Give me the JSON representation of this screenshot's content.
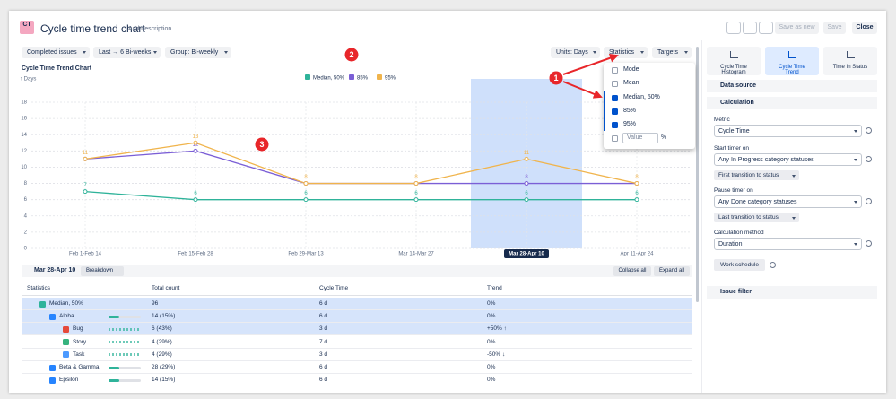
{
  "header": {
    "logo": "CT",
    "title": "Cycle time trend chart",
    "description": "Add description",
    "buttons": [
      "Save as new",
      "Save",
      "Close"
    ]
  },
  "toolbar": {
    "left": [
      "Completed issues",
      "Last → 6 Bi-weeks",
      "Group: Bi-weekly"
    ],
    "right": [
      "Units: Days",
      "Statistics",
      "Targets"
    ]
  },
  "chart_data": {
    "type": "line",
    "title": "Cycle Time Trend Chart",
    "y_label": "↑ Days",
    "categories": [
      "Feb 1-Feb 14",
      "Feb 15-Feb 28",
      "Feb 29-Mar 13",
      "Mar 14-Mar 27",
      "Mar 28-Apr 10",
      "Apr 11-Apr 24"
    ],
    "series": [
      {
        "name": "Median, 50%",
        "color": "#2fb39a",
        "values": [
          7,
          6,
          6,
          6,
          6,
          6
        ]
      },
      {
        "name": "85%",
        "color": "#7b5fd6",
        "values": [
          11,
          12,
          8,
          8,
          8,
          8
        ]
      },
      {
        "name": "95%",
        "color": "#f0b44c",
        "values": [
          11,
          13,
          8,
          8,
          11,
          8
        ]
      }
    ],
    "ylim": [
      0,
      18
    ],
    "yticks": [
      0,
      2,
      4,
      6,
      8,
      10,
      12,
      14,
      16,
      18
    ],
    "grid": true,
    "highlight_index": 4
  },
  "dropdown": {
    "items": [
      {
        "label": "Mode",
        "checked": false
      },
      {
        "label": "Mean",
        "checked": false
      },
      {
        "label": "Median, 50%",
        "checked": true
      },
      {
        "label": "85%",
        "checked": true
      },
      {
        "label": "95%",
        "checked": true
      }
    ],
    "value_placeholder": "Value",
    "unit": "%"
  },
  "annotations": [
    "1",
    "2",
    "3"
  ],
  "table": {
    "period": "Mar 28-Apr 10",
    "breakdown": "Breakdown",
    "actions": [
      "Collapse all",
      "Expand all"
    ],
    "columns": [
      "Statistics",
      "Total count",
      "Cycle Time",
      "Trend"
    ],
    "rows": [
      {
        "cells": [
          "Median, 50%",
          "96",
          "6 d",
          "0%"
        ],
        "level": 0,
        "selected": true,
        "color": "#2fb39a"
      },
      {
        "cells": [
          "Alpha",
          "14 (15%)",
          "6 d",
          "0%"
        ],
        "level": 1,
        "selected": true,
        "color": "#2684ff"
      },
      {
        "cells": [
          "Bug",
          "6 (43%)",
          "3 d",
          "+50% ↑"
        ],
        "level": 2,
        "selected": true,
        "color": "#e5493a"
      },
      {
        "cells": [
          "Story",
          "4 (29%)",
          "7 d",
          "0%"
        ],
        "level": 2,
        "selected": false,
        "color": "#36b37e"
      },
      {
        "cells": [
          "Task",
          "4 (29%)",
          "3 d",
          "-50% ↓"
        ],
        "level": 2,
        "selected": false,
        "color": "#4c9aff"
      },
      {
        "cells": [
          "Beta & Gamma",
          "28 (29%)",
          "6 d",
          "0%"
        ],
        "level": 1,
        "selected": false,
        "color": "#2684ff"
      },
      {
        "cells": [
          "Epsilon",
          "14 (15%)",
          "6 d",
          "0%"
        ],
        "level": 1,
        "selected": false,
        "color": "#2684ff"
      }
    ]
  },
  "sidebar": {
    "tabs": [
      "Cycle Time Histogram",
      "Cycle Time Trend",
      "Time In Status"
    ],
    "active_tab": 1,
    "data_source": "Data source",
    "calculation": "Calculation",
    "fields": [
      {
        "label": "Metric",
        "value": "Cycle Time"
      },
      {
        "label": "Start timer on",
        "value": "Any In Progress category statuses",
        "option": "First transition to status"
      },
      {
        "label": "Pause timer on",
        "value": "Any Done category statuses",
        "option": "Last transition to status"
      },
      {
        "label": "Calculation method",
        "value": "Duration"
      }
    ],
    "work_schedule": "Work schedule",
    "issue_filter": "Issue filter"
  }
}
